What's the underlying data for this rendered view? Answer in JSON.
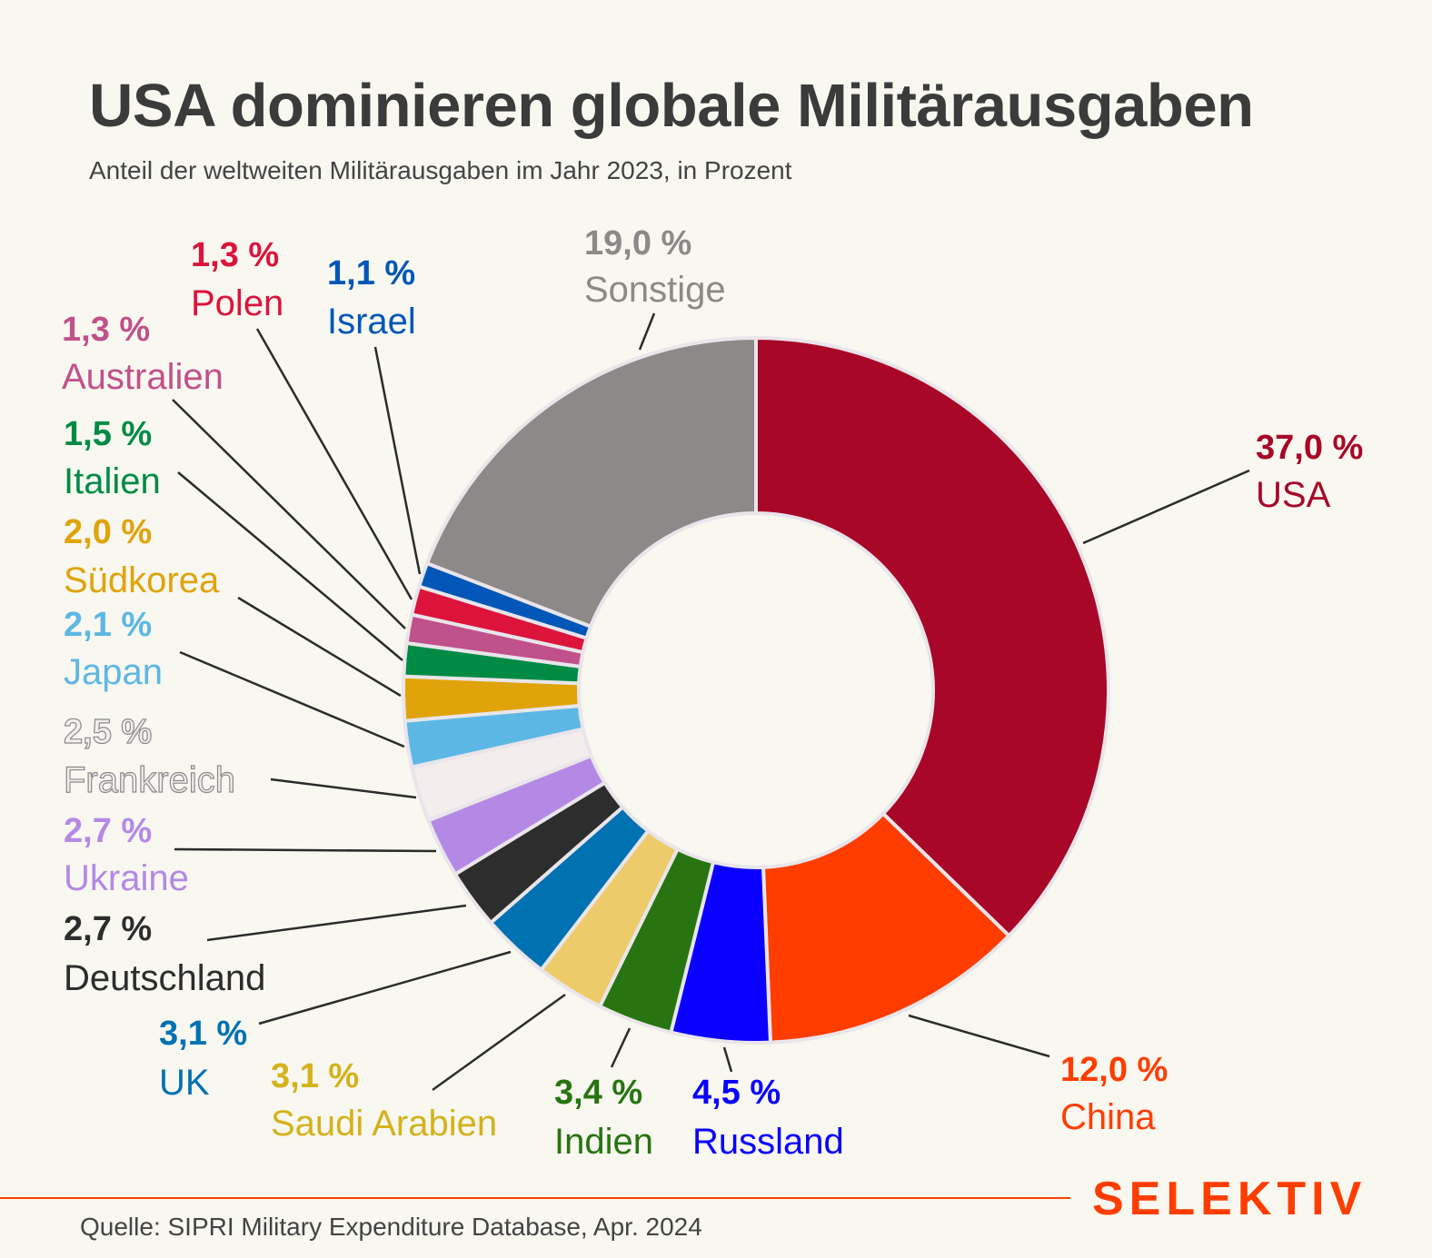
{
  "title": "USA dominieren globale Militärausgaben",
  "subtitle": "Anteil der weltweiten Militärausgaben im Jahr 2023, in Prozent",
  "source": "Quelle: SIPRI Military Expenditure Database, Apr. 2024",
  "logo": "SELEKTIV",
  "colors": {
    "background": "#f8f7f0",
    "accent": "#ff3d00"
  },
  "chart_data": {
    "type": "pie",
    "variant": "donut",
    "title": "USA dominieren globale Militärausgaben",
    "subtitle": "Anteil der weltweiten Militärausgaben im Jahr 2023, in Prozent",
    "unit": "%",
    "start": "12 o'clock, clockwise",
    "slices": [
      {
        "name": "USA",
        "value": 37.0,
        "label": "37,0 %",
        "color": "#a80728"
      },
      {
        "name": "China",
        "value": 12.0,
        "label": "12,0 %",
        "color": "#ff3d00"
      },
      {
        "name": "Russland",
        "value": 4.5,
        "label": "4,5 %",
        "color": "#0a00ff"
      },
      {
        "name": "Indien",
        "value": 3.4,
        "label": "3,4 %",
        "color": "#277410"
      },
      {
        "name": "Saudi Arabien",
        "value": 3.1,
        "label": "3,1 %",
        "color": "#eecb6a",
        "text_color": "#d4b21a"
      },
      {
        "name": "UK",
        "value": 3.1,
        "label": "3,1 %",
        "color": "#0072b1"
      },
      {
        "name": "Deutschland",
        "value": 2.7,
        "label": "2,7 %",
        "color": "#2d2d2d"
      },
      {
        "name": "Ukraine",
        "value": 2.7,
        "label": "2,7 %",
        "color": "#b489e5"
      },
      {
        "name": "Frankreich",
        "value": 2.5,
        "label": "2,5 %",
        "color": "#f3eded",
        "outline": true
      },
      {
        "name": "Japan",
        "value": 2.1,
        "label": "2,1 %",
        "color": "#5db7e4"
      },
      {
        "name": "Südkorea",
        "value": 2.0,
        "label": "2,0 %",
        "color": "#e0a30a"
      },
      {
        "name": "Italien",
        "value": 1.5,
        "label": "1,5 %",
        "color": "#008b45"
      },
      {
        "name": "Australien",
        "value": 1.3,
        "label": "1,3 %",
        "color": "#c1518a"
      },
      {
        "name": "Polen",
        "value": 1.3,
        "label": "1,3 %",
        "color": "#dc143c"
      },
      {
        "name": "Israel",
        "value": 1.1,
        "label": "1,1 %",
        "color": "#0057b8"
      },
      {
        "name": "Sonstige",
        "value": 19.0,
        "label": "19,0 %",
        "color": "#8c8988"
      }
    ]
  }
}
